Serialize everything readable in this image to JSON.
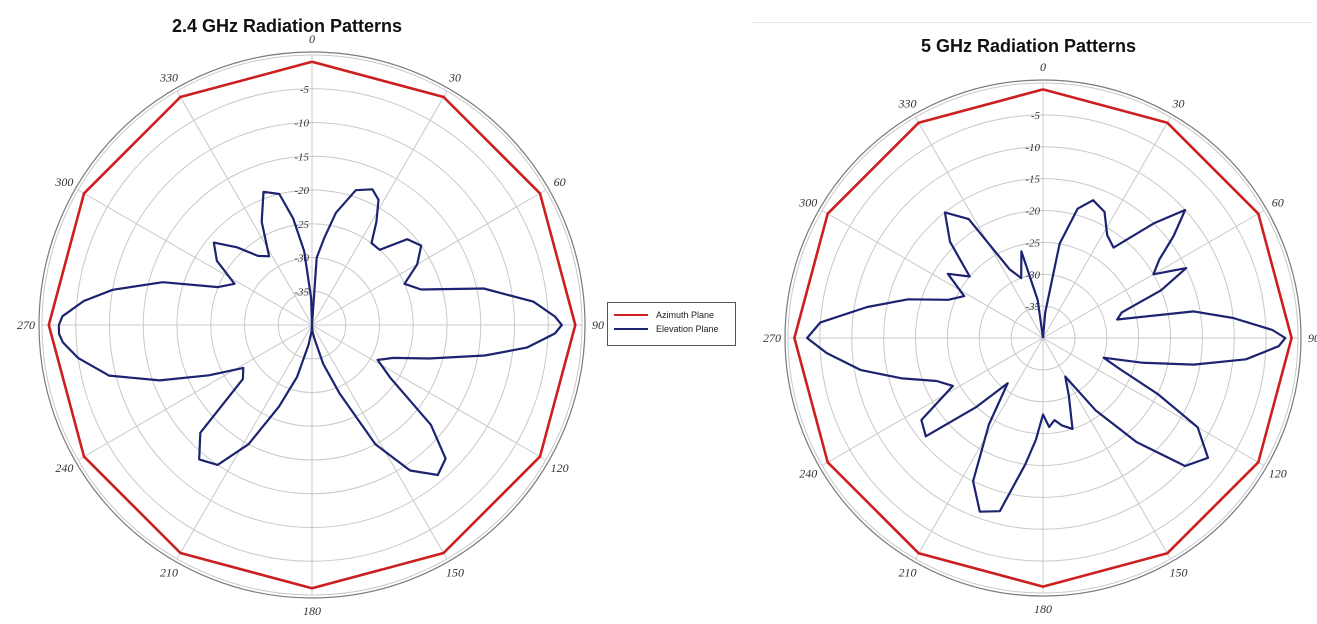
{
  "colors": {
    "azimuth": "#cc1f1f",
    "elevation": "#1c2370",
    "grid": "#c8c8c8",
    "outer_ring": "#7a7a7a"
  },
  "legend": {
    "items": [
      {
        "label": "Azimuth Plane",
        "color": "#cc1f1f"
      },
      {
        "label": "Elevation Plane",
        "color": "#1c2370"
      }
    ]
  },
  "chart_data": [
    {
      "type": "line",
      "coordinate_system": "polar",
      "title": "2.4 GHz Radiation Patterns",
      "angle_ticks": [
        "0",
        "30",
        "60",
        "90",
        "120",
        "150",
        "180",
        "210",
        "240",
        "270",
        "300",
        "330"
      ],
      "radial_ticks": [
        "-5",
        "-10",
        "-15",
        "-20",
        "-25",
        "-30",
        "-35"
      ],
      "r_range_db": [
        -40,
        0
      ],
      "grid": true,
      "legend_position": "between charts",
      "series": [
        {
          "name": "Azimuth Plane",
          "angles": [
            0,
            30,
            60,
            90,
            120,
            150,
            180,
            210,
            240,
            270,
            300,
            330,
            360
          ],
          "values_db": [
            -1,
            -1,
            -1,
            -1,
            -1,
            -1,
            -1,
            -1,
            -1,
            -1,
            -1,
            -1,
            -1
          ]
        },
        {
          "name": "Elevation Plane",
          "angles": [
            0,
            4,
            8,
            12,
            18,
            24,
            28,
            32,
            36,
            42,
            48,
            54,
            60,
            66,
            72,
            78,
            84,
            88,
            90,
            92,
            96,
            100,
            106,
            112,
            118,
            124,
            130,
            135,
            140,
            146,
            152,
            158,
            164,
            170,
            176,
            180,
            184,
            190,
            196,
            202,
            208,
            214,
            220,
            226,
            232,
            238,
            244,
            250,
            256,
            262,
            266,
            268,
            270,
            272,
            276,
            280,
            286,
            292,
            298,
            304,
            310,
            316,
            322,
            328,
            334,
            340,
            346,
            350,
            354,
            358,
            360
          ],
          "values_db": [
            -40,
            -30,
            -27,
            -23,
            -19,
            -18,
            -19,
            -22,
            -25,
            -25,
            -21,
            -20,
            -22,
            -25,
            -23,
            -14,
            -7,
            -4,
            -3,
            -4,
            -8,
            -14,
            -22,
            -27,
            -29,
            -26,
            -17,
            -12,
            -11,
            -14,
            -20,
            -29,
            -34,
            -38,
            -39,
            -40,
            -39,
            -37,
            -32,
            -27,
            -20,
            -15,
            -14,
            -17,
            -27,
            -28,
            -23,
            -16,
            -9,
            -5,
            -3,
            -2.5,
            -2.5,
            -3,
            -6,
            -10,
            -17,
            -25,
            -27,
            -23,
            -21,
            -24,
            -27,
            -28,
            -23,
            -19,
            -20,
            -24,
            -29,
            -36,
            -40
          ]
        }
      ]
    },
    {
      "type": "line",
      "coordinate_system": "polar",
      "title": "5 GHz Radiation Patterns",
      "angle_ticks": [
        "0",
        "30",
        "60",
        "90",
        "120",
        "150",
        "180",
        "210",
        "240",
        "270",
        "300",
        "330"
      ],
      "radial_ticks": [
        "-5",
        "-10",
        "-15",
        "-20",
        "-25",
        "-30",
        "-35"
      ],
      "r_range_db": [
        -40,
        0
      ],
      "grid": true,
      "legend_position": "between charts",
      "series": [
        {
          "name": "Azimuth Plane",
          "angles": [
            0,
            30,
            60,
            90,
            120,
            150,
            180,
            210,
            240,
            270,
            300,
            330,
            360
          ],
          "values_db": [
            -1,
            -1,
            -1,
            -1,
            -1,
            -1,
            -1,
            -1,
            -1,
            -1,
            -1,
            -1,
            -1
          ]
        },
        {
          "name": "Elevation Plane",
          "angles": [
            0,
            5,
            10,
            15,
            20,
            26,
            32,
            38,
            44,
            48,
            52,
            56,
            60,
            64,
            68,
            72,
            76,
            80,
            84,
            88,
            90,
            92,
            96,
            100,
            104,
            108,
            112,
            116,
            120,
            126,
            132,
            138,
            144,
            150,
            156,
            162,
            168,
            172,
            176,
            180,
            184,
            188,
            194,
            200,
            206,
            212,
            218,
            224,
            230,
            236,
            242,
            248,
            254,
            260,
            266,
            270,
            274,
            280,
            286,
            292,
            298,
            304,
            310,
            316,
            322,
            328,
            334,
            340,
            346,
            352,
            358,
            360
          ],
          "values_db": [
            -40,
            -36,
            -25,
            -19,
            -17,
            -18,
            -21,
            -22,
            -15,
            -10,
            -14,
            -18,
            -20,
            -15,
            -20,
            -27,
            -28,
            -16,
            -10,
            -4,
            -2,
            -3,
            -8,
            -16,
            -24,
            -30,
            -27,
            -20,
            -12,
            -8,
            -10,
            -18,
            -26,
            -33,
            -30,
            -25,
            -26,
            -27,
            -26,
            -28,
            -24,
            -20,
            -12,
            -11,
            -15,
            -24,
            -31,
            -25,
            -16,
            -17,
            -24,
            -22,
            -17,
            -11,
            -6,
            -3,
            -5,
            -12,
            -18,
            -24,
            -26,
            -22,
            -25,
            -19,
            -15,
            -18,
            -28,
            -30,
            -26,
            -34,
            -40,
            -40
          ]
        }
      ]
    }
  ]
}
